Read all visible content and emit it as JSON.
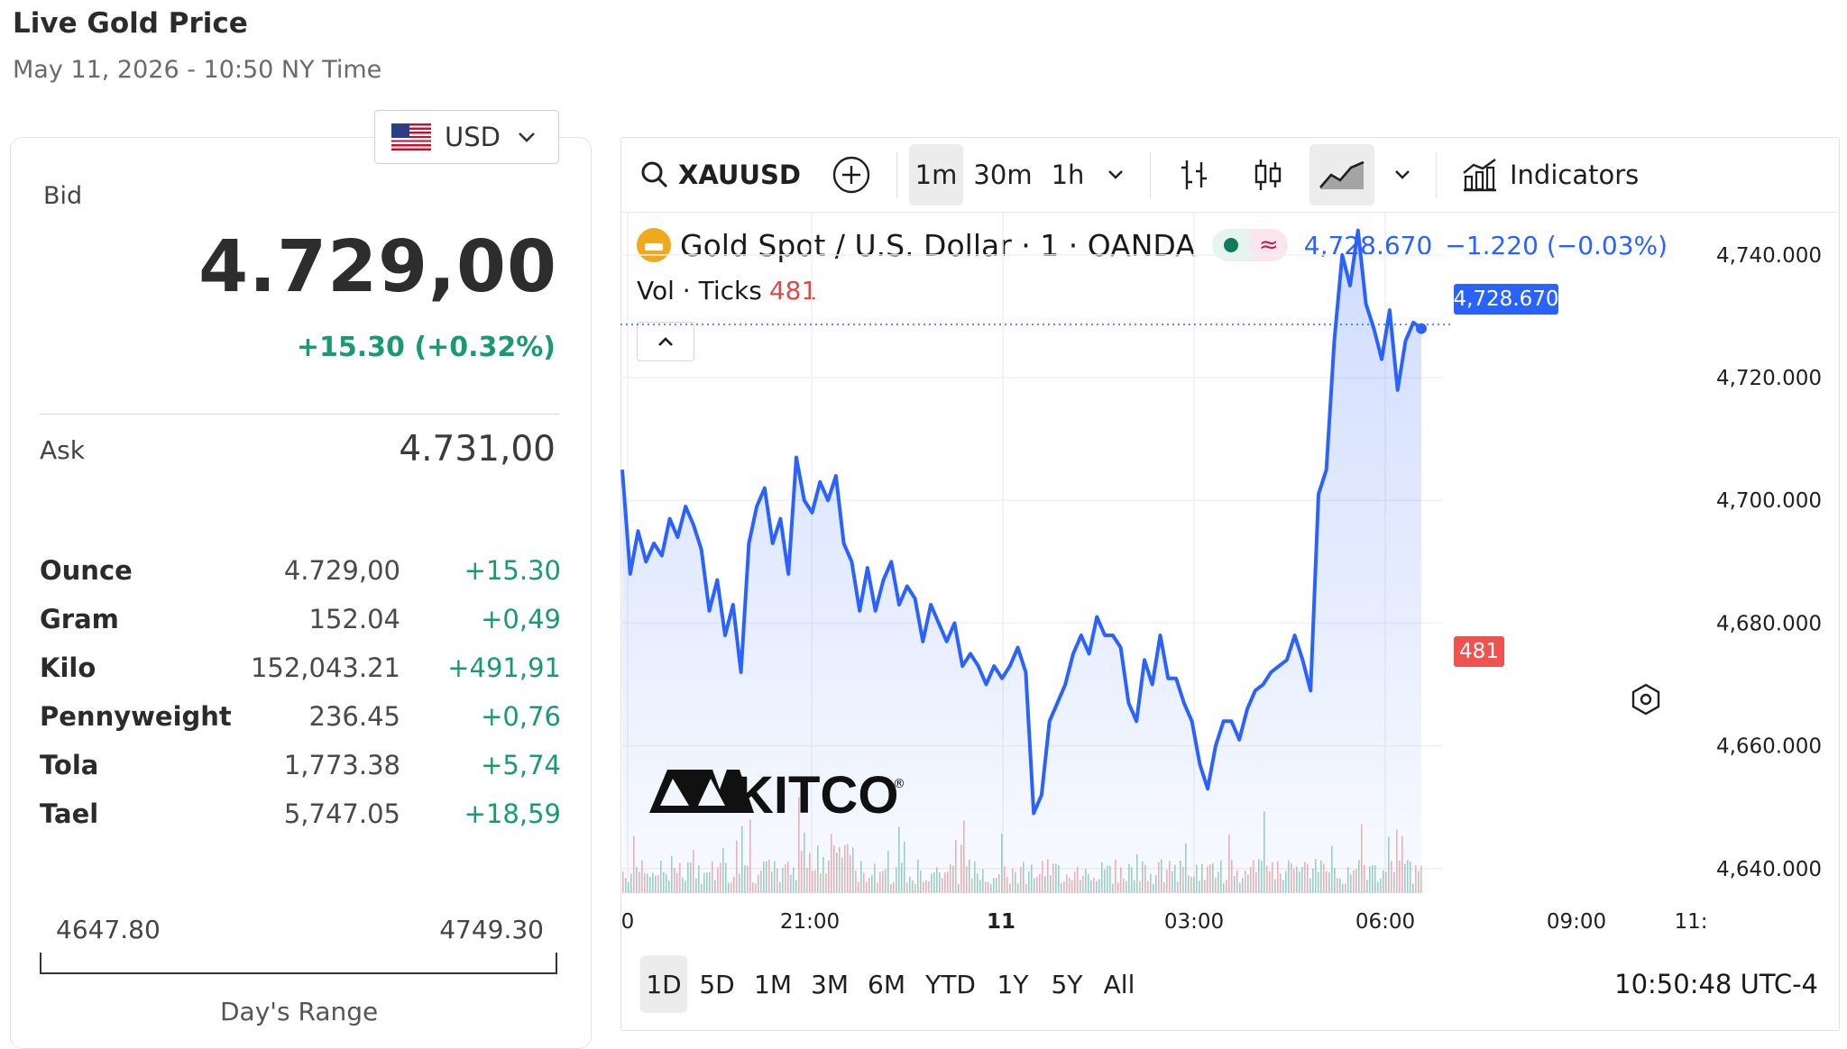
{
  "header": {
    "title": "Live Gold Price",
    "subtitle": "May 11, 2026 - 10:50 NY Time"
  },
  "currency": {
    "selected": "USD",
    "flag_icon": "us-flag-icon"
  },
  "quote": {
    "bid_label": "Bid",
    "bid_value": "4.729,00",
    "bid_change": "+15.30 (+0.32%)",
    "ask_label": "Ask",
    "ask_value": "4.731,00",
    "up_color": "#189a74"
  },
  "units": [
    {
      "name": "Ounce",
      "price": "4.729,00",
      "change": "+15.30"
    },
    {
      "name": "Gram",
      "price": "152.04",
      "change": "+0,49"
    },
    {
      "name": "Kilo",
      "price": "152,043.21",
      "change": "+491,91"
    },
    {
      "name": "Pennyweight",
      "price": "236.45",
      "change": "+0,76"
    },
    {
      "name": "Tola",
      "price": "1,773.38",
      "change": "+5,74"
    },
    {
      "name": "Tael",
      "price": "5,747.05",
      "change": "+18,59"
    }
  ],
  "day_range": {
    "low": "4647.80",
    "high": "4749.30",
    "label": "Day's Range"
  },
  "chart_widget": {
    "toolbar": {
      "symbol": "XAUUSD",
      "intervals": [
        "1m",
        "30m",
        "1h"
      ],
      "selected_interval": "1m",
      "indicators_label": "Indicators"
    },
    "legend": {
      "title": "Gold Spot / U.S. Dollar · 1 · OANDA",
      "approx_symbol": "≈",
      "last_price": "4,728.670",
      "change": "−1.220 (−0.03%)",
      "vol_label": "Vol · Ticks",
      "vol_value": "481"
    },
    "watermark": "KITCO",
    "ranges": [
      "1D",
      "5D",
      "1M",
      "3M",
      "6M",
      "YTD",
      "1Y",
      "5Y",
      "All"
    ],
    "selected_range": "1D",
    "clock": "10:50:48 UTC-4",
    "colors": {
      "line": "#2962ff",
      "volume_up": "#7fc4ae",
      "volume_down": "#ef9a9a",
      "last_label": "#2962ff",
      "vol_label": "#ef5350"
    }
  },
  "chart_data": {
    "type": "line",
    "series": [
      {
        "values": [
          4705,
          4688,
          4695,
          4690,
          4693,
          4691,
          4697,
          4694,
          4699,
          4696,
          4692,
          4682,
          4687,
          4678,
          4683,
          4672,
          4693,
          4699,
          4702,
          4693,
          4697,
          4688,
          4707,
          4700,
          4698,
          4703,
          4700,
          4704,
          4693,
          4690,
          4682,
          4689,
          4682,
          4687,
          4690,
          4683,
          4686,
          4684,
          4677,
          4683,
          4680,
          4677,
          4680,
          4673,
          4675,
          4673,
          4670,
          4673,
          4671,
          4673,
          4676,
          4672,
          4649,
          4652,
          4664,
          4667,
          4670,
          4675,
          4678,
          4675,
          4681,
          4678,
          4678,
          4676,
          4667,
          4664,
          4674,
          4670,
          4678,
          4671,
          4671,
          4667,
          4664,
          4657,
          4653,
          4660,
          4664,
          4664,
          4661,
          4666,
          4669,
          4670,
          4672,
          4673,
          4674,
          4678,
          4674,
          4669,
          4701,
          4705,
          4726,
          4740,
          4735,
          4744,
          4732,
          4728,
          4723,
          4731,
          4718,
          4726,
          4729,
          4728
        ]
      }
    ],
    "x_tick_labels": [
      "0",
      "21:00",
      "11",
      "03:00",
      "06:00",
      "09:00",
      "11:"
    ],
    "y_tick_labels": [
      "4,740.000",
      "4,720.000",
      "4,700.000",
      "4,680.000",
      "4,660.000",
      "4,640.000"
    ],
    "ylim": [
      4636,
      4746
    ],
    "last_value": 4728.67,
    "last_value_label": "4,728.670",
    "volume_last_label": "481",
    "grid": true
  }
}
